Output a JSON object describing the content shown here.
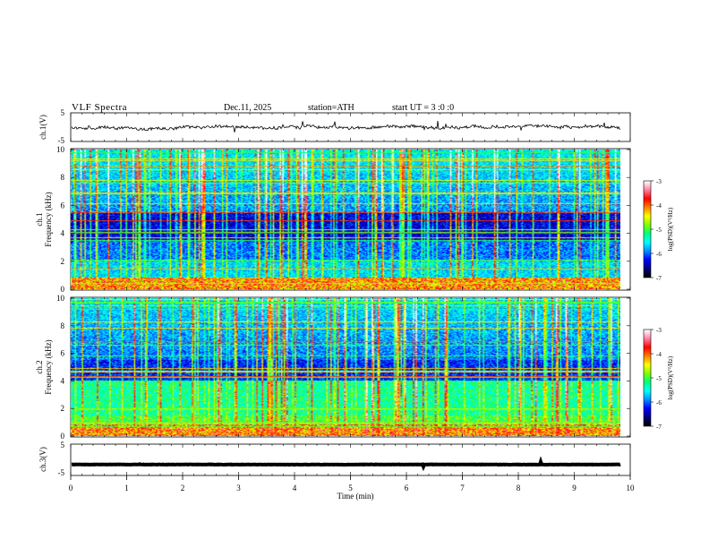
{
  "header": {
    "title": "VLF Spectra",
    "date": "Dec.11, 2025",
    "station": "station=ATH",
    "start_ut": "start UT =  3 :0 :0"
  },
  "chart_data": [
    {
      "type": "line",
      "name": "ch1-waveform",
      "ylabel": "ch.1(V)",
      "ylim": [
        -5,
        5
      ],
      "yticks": [
        "5",
        "-5"
      ],
      "xlim": [
        0,
        10
      ],
      "baseline": 0.0
    },
    {
      "type": "heatmap",
      "name": "ch1-spectrogram",
      "ylabel": "ch.1\nFrequency (kHz)",
      "ylabel_lines": [
        "ch.1",
        "Frequency (kHz)"
      ],
      "ylim": [
        0,
        10
      ],
      "yticks": [
        "0",
        "2",
        "4",
        "6",
        "8",
        "10"
      ],
      "xlim": [
        0,
        9.8
      ],
      "colorbar": {
        "label": "log(PSD)(V²/Hz)",
        "range": [
          -7,
          -3
        ],
        "ticks": [
          "-3",
          "-4",
          "-5",
          "-6",
          "-7"
        ]
      }
    },
    {
      "type": "heatmap",
      "name": "ch2-spectrogram",
      "ylabel": "ch.2\nFrequency (kHz)",
      "ylabel_lines": [
        "ch.2",
        "Frequency (kHz)"
      ],
      "ylim": [
        0,
        10
      ],
      "yticks": [
        "0",
        "2",
        "4",
        "6",
        "8",
        "10"
      ],
      "xlim": [
        0,
        9.8
      ],
      "colorbar": {
        "label": "log(PSD)(V²/Hz)",
        "range": [
          -7,
          -3
        ],
        "ticks": [
          "-3",
          "-4",
          "-5",
          "-6",
          "-7"
        ]
      }
    },
    {
      "type": "line",
      "name": "ch3-waveform",
      "ylabel": "ch.3(V)",
      "ylim": [
        -5,
        5
      ],
      "yticks": [
        "5",
        "-5"
      ],
      "xlim": [
        0,
        10
      ],
      "baseline": -1.5
    }
  ],
  "xaxis": {
    "label": "Time (min)",
    "range": [
      0,
      10
    ],
    "ticks": [
      "0",
      "1",
      "2",
      "3",
      "4",
      "5",
      "6",
      "7",
      "8",
      "9",
      "10"
    ]
  },
  "colors": {
    "colormap": [
      "#000000",
      "#000080",
      "#0000ff",
      "#0090ff",
      "#00ffff",
      "#00ff80",
      "#80ff00",
      "#ffff00",
      "#ff8000",
      "#ff0000",
      "#ff80a0",
      "#ffffff"
    ]
  }
}
